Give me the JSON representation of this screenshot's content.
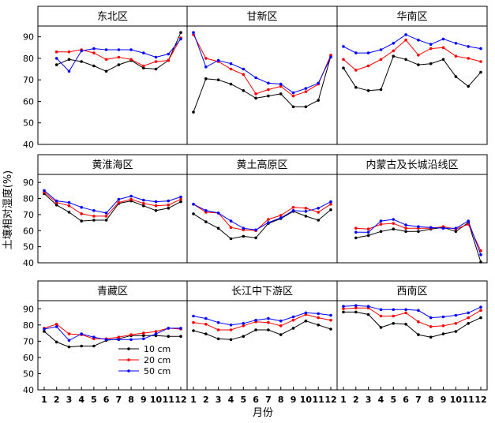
{
  "chart_data": {
    "type": "line",
    "x": [
      1,
      2,
      3,
      4,
      5,
      6,
      7,
      8,
      9,
      10,
      11,
      12
    ],
    "xlabel": "月份",
    "ylabel": "土壤相对湿度(%)",
    "ylim": [
      40,
      95
    ],
    "yticks": [
      40,
      50,
      60,
      70,
      80,
      90
    ],
    "legend": {
      "placement": "bottom-left",
      "entries": [
        "10 cm",
        "20 cm",
        "50 cm"
      ]
    },
    "series_colors": [
      "#000000",
      "#ff0000",
      "#0000ff"
    ],
    "panels": [
      {
        "title": "东北区",
        "series": [
          {
            "name": "10 cm",
            "values": [
              null,
              77,
              79.5,
              78.5,
              76.5,
              74,
              77,
              79,
              75.5,
              75,
              79,
              92
            ]
          },
          {
            "name": "20 cm",
            "values": [
              null,
              83,
              83,
              84,
              82.5,
              79.5,
              80.5,
              79.5,
              76.5,
              78.5,
              79,
              89.5
            ]
          },
          {
            "name": "50 cm",
            "values": [
              null,
              80,
              74,
              83.5,
              84.5,
              84,
              84,
              84,
              82.5,
              80.5,
              82,
              89
            ]
          }
        ]
      },
      {
        "title": "甘新区",
        "series": [
          {
            "name": "10 cm",
            "values": [
              55,
              70.5,
              70,
              68,
              65,
              61.5,
              62.5,
              63.5,
              57.5,
              57.5,
              60.5,
              81
            ]
          },
          {
            "name": "20 cm",
            "values": [
              91,
              80,
              78.5,
              75,
              72.5,
              63.5,
              65.5,
              67,
              62.5,
              64.5,
              68,
              81.5
            ]
          },
          {
            "name": "50 cm",
            "values": [
              92,
              76,
              79,
              77.5,
              75,
              71,
              68.5,
              68,
              64,
              66,
              68.5,
              80.5
            ]
          }
        ]
      },
      {
        "title": "华南区",
        "series": [
          {
            "name": "10 cm",
            "values": [
              75.5,
              66.5,
              65,
              65.5,
              81,
              79.5,
              77,
              77.5,
              79.5,
              71.5,
              67,
              73.5
            ]
          },
          {
            "name": "20 cm",
            "values": [
              79.5,
              74.5,
              76.5,
              79.5,
              83.5,
              88.5,
              81.5,
              84.5,
              85,
              81,
              80,
              78.5
            ]
          },
          {
            "name": "50 cm",
            "values": [
              85.5,
              82.5,
              82.5,
              84,
              87,
              91,
              88.5,
              86.5,
              89,
              87,
              85.5,
              84.5
            ]
          }
        ]
      },
      {
        "title": "黄淮海区",
        "series": [
          {
            "name": "10 cm",
            "values": [
              83,
              76,
              71.5,
              66,
              66.5,
              66.5,
              77,
              78.5,
              75.5,
              72.5,
              74,
              78
            ]
          },
          {
            "name": "20 cm",
            "values": [
              84,
              77.5,
              75.5,
              70.5,
              69,
              69,
              77.5,
              79.5,
              77,
              75.5,
              76,
              79.5
            ]
          },
          {
            "name": "50 cm",
            "values": [
              85,
              78.5,
              77.5,
              74.5,
              72.5,
              71,
              79.5,
              81.5,
              79,
              78,
              78.5,
              81
            ]
          }
        ]
      },
      {
        "title": "黄土高原区",
        "series": [
          {
            "name": "10 cm",
            "values": [
              70.5,
              65.5,
              61.5,
              55,
              56.5,
              55.5,
              64.5,
              67.5,
              72,
              69,
              66.5,
              73
            ]
          },
          {
            "name": "20 cm",
            "values": [
              76.5,
              71.5,
              71,
              62,
              60.5,
              60,
              67,
              69.5,
              74.5,
              74,
              71.5,
              76.5
            ]
          },
          {
            "name": "50 cm",
            "values": [
              76.5,
              72.5,
              71,
              66,
              61.5,
              60.5,
              65,
              68,
              72.5,
              72,
              74,
              78
            ]
          }
        ]
      },
      {
        "title": "内蒙古及长城沿线区",
        "series": [
          {
            "name": "10 cm",
            "values": [
              null,
              55.5,
              57,
              59.5,
              61,
              59.5,
              59.5,
              61,
              62,
              59.5,
              65,
              40.5
            ]
          },
          {
            "name": "20 cm",
            "values": [
              null,
              61.5,
              61,
              64,
              64.5,
              61.5,
              61.5,
              61.5,
              62.5,
              61,
              64,
              47.5
            ]
          },
          {
            "name": "50 cm",
            "values": [
              null,
              59,
              59,
              66,
              67,
              63.5,
              62.5,
              62,
              61.5,
              61.5,
              66,
              45
            ]
          }
        ]
      },
      {
        "title": "青藏区",
        "series": [
          {
            "name": "10 cm",
            "values": [
              76,
              69.5,
              66.5,
              67,
              67,
              70.5,
              71.5,
              73.5,
              73.5,
              73.5,
              73,
              73
            ]
          },
          {
            "name": "20 cm",
            "values": [
              78,
              80.5,
              74.5,
              74,
              71.5,
              71.5,
              72.5,
              74,
              75,
              76,
              78,
              77.5
            ]
          },
          {
            "name": "50 cm",
            "values": [
              77.5,
              79,
              70.5,
              74.5,
              72.5,
              71,
              71,
              71,
              71.5,
              74.5,
              78,
              78
            ]
          }
        ]
      },
      {
        "title": "长江中下游区",
        "series": [
          {
            "name": "10 cm",
            "values": [
              76.5,
              74.5,
              71.5,
              71,
              73,
              77,
              77,
              74,
              78,
              82.5,
              80,
              77.5
            ]
          },
          {
            "name": "20 cm",
            "values": [
              81.5,
              80.5,
              77,
              77,
              79.5,
              82,
              81.5,
              79.5,
              83,
              86.5,
              84.5,
              83
            ]
          },
          {
            "name": "50 cm",
            "values": [
              85.5,
              84,
              81.5,
              80,
              81,
              83,
              84,
              82.5,
              85,
              87.5,
              87,
              86
            ]
          }
        ]
      },
      {
        "title": "西南区",
        "series": [
          {
            "name": "10 cm",
            "values": [
              88,
              88,
              86.5,
              78.5,
              81,
              80.5,
              74,
              72.5,
              74.5,
              76,
              81,
              84.5
            ]
          },
          {
            "name": "20 cm",
            "values": [
              90,
              90.5,
              90.5,
              85.5,
              85.5,
              87.5,
              82,
              79,
              79.5,
              81,
              84.5,
              89
            ]
          },
          {
            "name": "50 cm",
            "values": [
              91.5,
              92,
              91.5,
              89.5,
              89.5,
              89.5,
              89,
              84.5,
              85,
              86,
              87.5,
              91
            ]
          }
        ]
      }
    ]
  }
}
